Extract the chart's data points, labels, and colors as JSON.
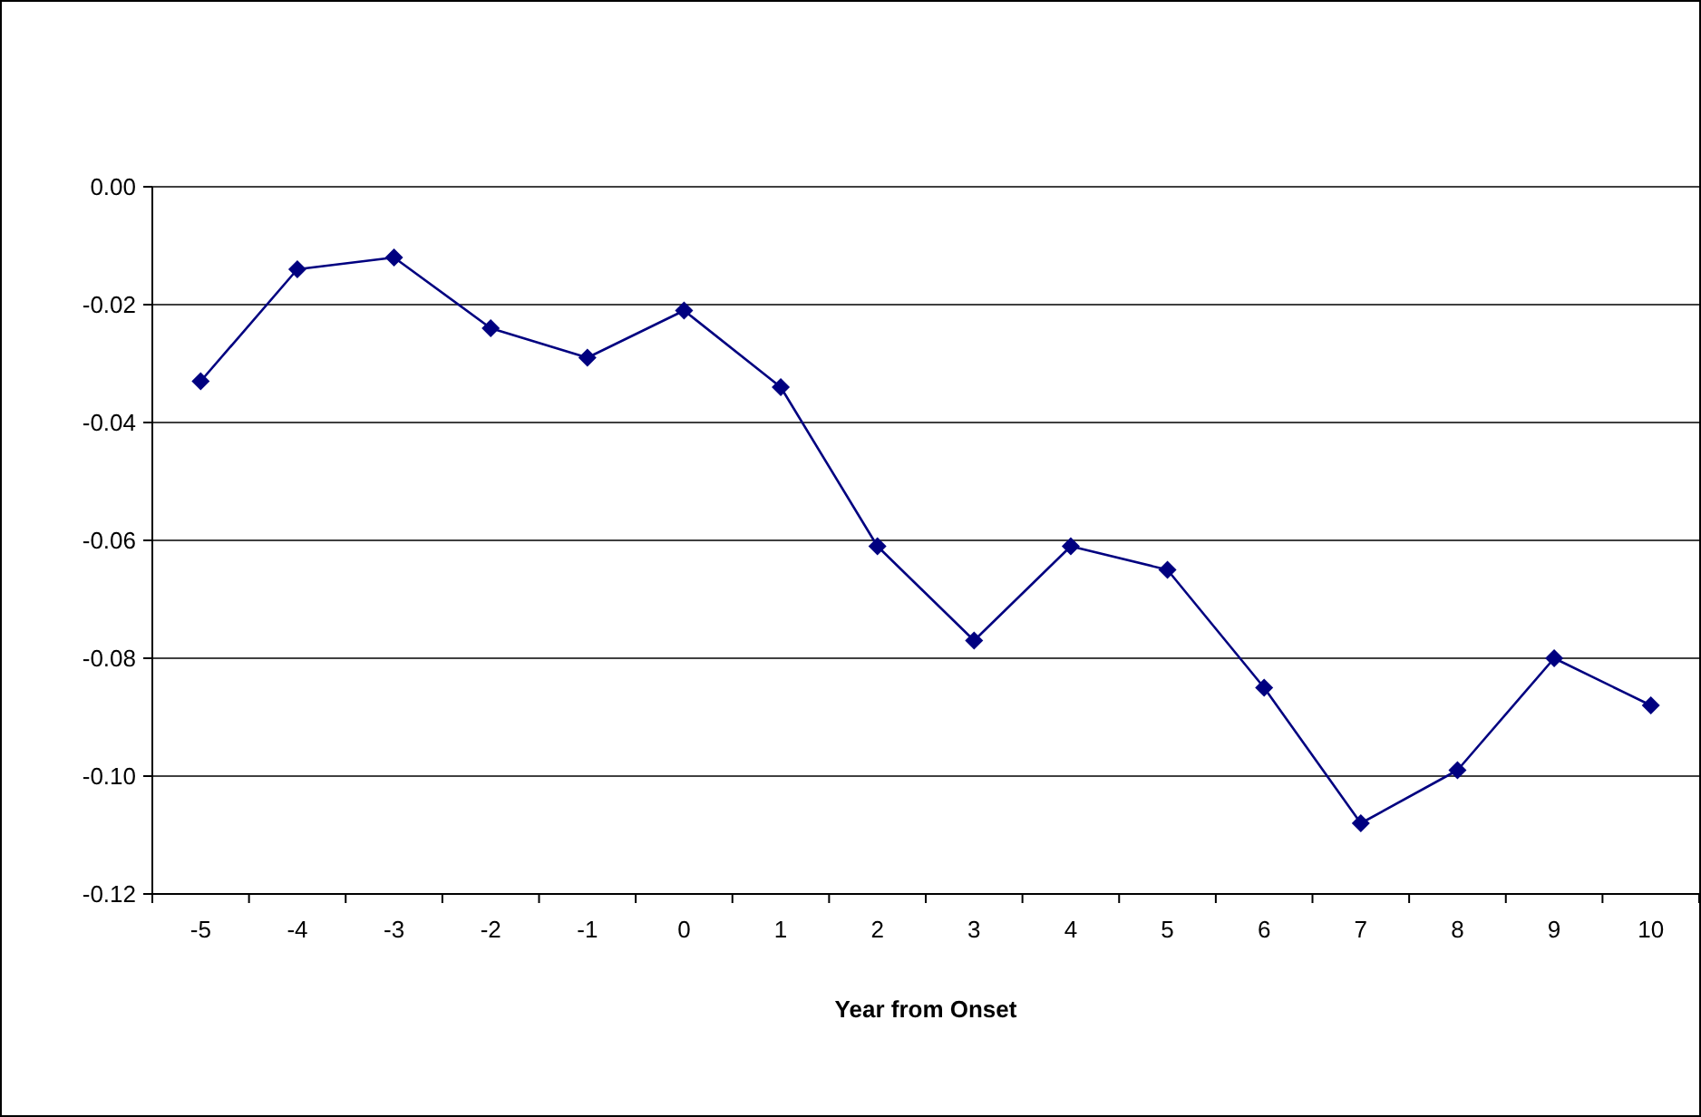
{
  "chart_data": {
    "type": "line",
    "xlabel": "Year from Onset",
    "categories": [
      "-5",
      "-4",
      "-3",
      "-2",
      "-1",
      "0",
      "1",
      "2",
      "3",
      "4",
      "5",
      "6",
      "7",
      "8",
      "9",
      "10"
    ],
    "series": [
      {
        "color": "#000080",
        "values": [
          -0.033,
          -0.014,
          -0.012,
          -0.024,
          -0.029,
          -0.021,
          -0.034,
          -0.061,
          -0.077,
          -0.061,
          -0.065,
          -0.085,
          -0.108,
          -0.099,
          -0.08,
          -0.088
        ]
      }
    ],
    "ylim": [
      -0.12,
      0
    ],
    "yticks": [
      {
        "value": -0.12,
        "label": "-0.12"
      },
      {
        "value": -0.1,
        "label": "-0.10"
      },
      {
        "value": -0.08,
        "label": "-0.08"
      },
      {
        "value": -0.06,
        "label": "-0.06"
      },
      {
        "value": -0.04,
        "label": "-0.04"
      },
      {
        "value": -0.02,
        "label": "-0.02"
      },
      {
        "value": 0,
        "label": "0.00"
      }
    ],
    "grid": "y",
    "marker": "diamond",
    "line_style": "solid"
  }
}
